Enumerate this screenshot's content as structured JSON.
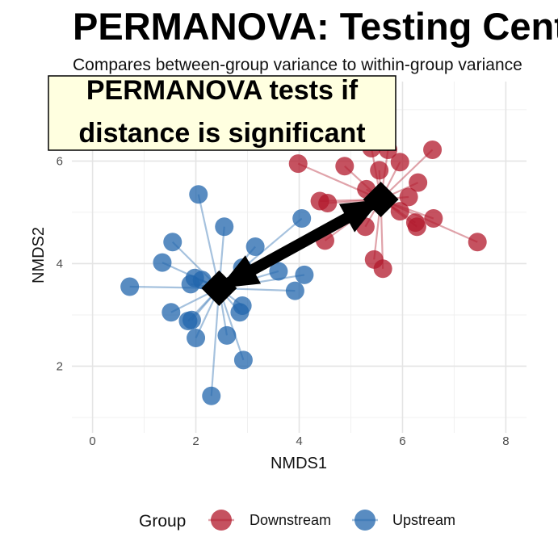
{
  "chart_data": {
    "type": "scatter",
    "title": "PERMANOVA: Testing Centroid",
    "subtitle": "Compares between-group variance to within-group variance",
    "xlabel": "NMDS1",
    "ylabel": "NMDS2",
    "xlim": [
      -0.4,
      8.4
    ],
    "ylim": [
      0.7,
      7.55
    ],
    "x_ticks": [
      0,
      2,
      4,
      6,
      8
    ],
    "y_ticks": [
      2,
      4,
      6
    ],
    "grid": true,
    "legend_title": "Group",
    "legend_position": "bottom",
    "annotation": {
      "lines": [
        "PERMANOVA tests if",
        "distance is significant"
      ]
    },
    "series": [
      {
        "name": "Downstream",
        "color": "#B2182B",
        "centroid": [
          5.58,
          5.25
        ],
        "points": [
          [
            5.4,
            6.25
          ],
          [
            5.72,
            6.22
          ],
          [
            6.58,
            6.22
          ],
          [
            3.98,
            5.95
          ],
          [
            4.88,
            5.9
          ],
          [
            5.95,
            5.98
          ],
          [
            5.55,
            5.82
          ],
          [
            6.3,
            5.58
          ],
          [
            5.3,
            5.45
          ],
          [
            6.12,
            5.3
          ],
          [
            4.4,
            5.22
          ],
          [
            4.55,
            5.18
          ],
          [
            5.95,
            5.02
          ],
          [
            6.25,
            4.8
          ],
          [
            6.28,
            4.72
          ],
          [
            6.6,
            4.88
          ],
          [
            5.28,
            4.72
          ],
          [
            4.5,
            4.45
          ],
          [
            7.45,
            4.42
          ],
          [
            5.45,
            4.08
          ],
          [
            5.62,
            3.9
          ]
        ]
      },
      {
        "name": "Upstream",
        "color": "#2166AC",
        "centroid": [
          2.45,
          3.52
        ],
        "points": [
          [
            2.05,
            5.35
          ],
          [
            2.55,
            4.72
          ],
          [
            4.05,
            4.88
          ],
          [
            1.55,
            4.42
          ],
          [
            3.15,
            4.33
          ],
          [
            1.35,
            4.02
          ],
          [
            2.9,
            3.92
          ],
          [
            3.6,
            3.85
          ],
          [
            4.1,
            3.78
          ],
          [
            1.98,
            3.72
          ],
          [
            2.12,
            3.68
          ],
          [
            0.72,
            3.55
          ],
          [
            1.9,
            3.6
          ],
          [
            3.92,
            3.47
          ],
          [
            2.9,
            3.18
          ],
          [
            2.85,
            3.05
          ],
          [
            1.52,
            3.05
          ],
          [
            1.92,
            2.9
          ],
          [
            1.85,
            2.88
          ],
          [
            2.6,
            2.6
          ],
          [
            2.0,
            2.55
          ],
          [
            2.92,
            2.12
          ],
          [
            2.3,
            1.42
          ]
        ]
      }
    ]
  }
}
